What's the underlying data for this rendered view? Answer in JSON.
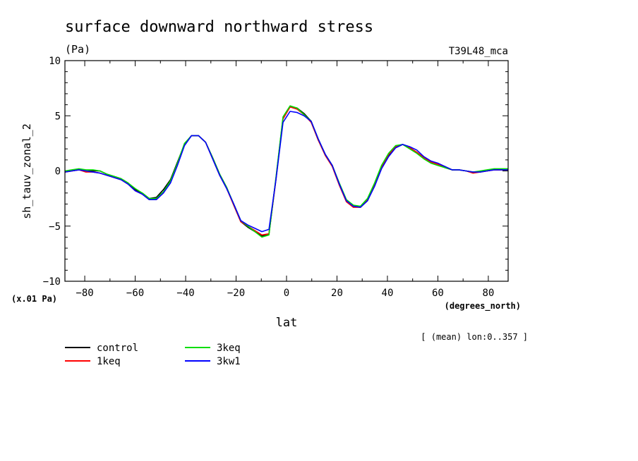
{
  "chart_data": {
    "type": "line",
    "title": "surface downward northward stress",
    "units": "(Pa)",
    "tag": "T39L48_mca",
    "ylabel": "sh_tauv_zonal_2",
    "xlabel": "lat",
    "xunits": "(degrees_north)",
    "yscale_note": "(x.01 Pa)",
    "footnote": "[ (mean) lon:0..357 ]",
    "xlim": [
      -87.86,
      87.86
    ],
    "ylim": [
      -10,
      10
    ],
    "x_ticks": [
      -80,
      -60,
      -40,
      -20,
      0,
      20,
      40,
      60,
      80
    ],
    "y_ticks": [
      -10,
      -5,
      0,
      5,
      10
    ],
    "grid": false,
    "legend_position": "bottom-left",
    "x": [
      -87.86,
      -85.1,
      -82.31,
      -79.53,
      -76.74,
      -73.95,
      -71.16,
      -68.37,
      -65.58,
      -62.79,
      -60.0,
      -57.21,
      -54.42,
      -51.63,
      -48.84,
      -46.04,
      -43.25,
      -40.46,
      -37.67,
      -34.88,
      -32.09,
      -29.3,
      -26.51,
      -23.72,
      -20.93,
      -18.14,
      -15.35,
      -12.56,
      -9.77,
      -6.98,
      -4.19,
      -1.4,
      1.4,
      4.19,
      6.98,
      9.77,
      12.56,
      15.35,
      18.14,
      20.93,
      23.72,
      26.51,
      29.3,
      32.09,
      34.88,
      37.67,
      40.46,
      43.25,
      46.04,
      48.84,
      51.63,
      54.42,
      57.21,
      60.0,
      62.79,
      65.58,
      68.37,
      71.16,
      73.95,
      76.74,
      79.53,
      82.31,
      85.1,
      87.86
    ],
    "series": [
      {
        "name": "control",
        "color": "#000000",
        "values": [
          -0.1,
          0.0,
          0.1,
          0.0,
          0.0,
          0.0,
          -0.3,
          -0.5,
          -0.7,
          -1.1,
          -1.7,
          -2.0,
          -2.5,
          -2.4,
          -1.7,
          -0.8,
          0.8,
          2.4,
          3.2,
          3.2,
          2.6,
          1.2,
          -0.3,
          -1.5,
          -3.1,
          -4.6,
          -5.1,
          -5.5,
          -5.9,
          -5.7,
          -0.7,
          4.8,
          5.8,
          5.7,
          5.2,
          4.5,
          2.8,
          1.5,
          0.5,
          -1.2,
          -2.7,
          -3.2,
          -3.3,
          -2.7,
          -1.3,
          0.3,
          1.4,
          2.1,
          2.4,
          2.1,
          1.7,
          1.2,
          0.8,
          0.6,
          0.4,
          0.1,
          0.1,
          0.0,
          -0.1,
          -0.1,
          0.0,
          0.1,
          0.1,
          0.1
        ]
      },
      {
        "name": "1keq",
        "color": "#ff0000",
        "values": [
          -0.1,
          0.0,
          0.1,
          -0.1,
          -0.1,
          -0.2,
          -0.4,
          -0.6,
          -0.8,
          -1.2,
          -1.8,
          -2.1,
          -2.6,
          -2.6,
          -2.0,
          -1.0,
          0.6,
          2.4,
          3.2,
          3.2,
          2.6,
          1.1,
          -0.4,
          -1.6,
          -3.1,
          -4.6,
          -5.0,
          -5.4,
          -5.8,
          -5.7,
          -0.8,
          4.7,
          5.8,
          5.6,
          5.1,
          4.4,
          2.8,
          1.4,
          0.4,
          -1.3,
          -2.8,
          -3.3,
          -3.3,
          -2.6,
          -1.2,
          0.4,
          1.5,
          2.2,
          2.4,
          2.1,
          1.7,
          1.2,
          0.8,
          0.6,
          0.3,
          0.1,
          0.1,
          0.0,
          -0.2,
          -0.1,
          0.0,
          0.1,
          0.1,
          0.1
        ]
      },
      {
        "name": "3keq",
        "color": "#00dd00",
        "values": [
          0.0,
          0.1,
          0.2,
          0.1,
          0.1,
          0.0,
          -0.3,
          -0.5,
          -0.7,
          -1.1,
          -1.6,
          -2.0,
          -2.5,
          -2.5,
          -1.9,
          -0.9,
          0.7,
          2.5,
          3.2,
          3.2,
          2.6,
          1.2,
          -0.3,
          -1.5,
          -3.0,
          -4.5,
          -5.0,
          -5.5,
          -6.0,
          -5.8,
          -0.6,
          4.9,
          5.9,
          5.7,
          5.1,
          4.5,
          2.9,
          1.5,
          0.5,
          -1.1,
          -2.6,
          -3.1,
          -3.2,
          -2.5,
          -1.1,
          0.5,
          1.6,
          2.3,
          2.4,
          2.0,
          1.6,
          1.1,
          0.7,
          0.5,
          0.3,
          0.1,
          0.1,
          0.0,
          -0.1,
          0.0,
          0.1,
          0.2,
          0.2,
          0.2
        ]
      },
      {
        "name": "3kw1",
        "color": "#0000ff",
        "values": [
          -0.1,
          0.0,
          0.1,
          0.0,
          -0.1,
          -0.2,
          -0.4,
          -0.6,
          -0.8,
          -1.2,
          -1.8,
          -2.1,
          -2.6,
          -2.6,
          -2.0,
          -1.1,
          0.5,
          2.3,
          3.2,
          3.2,
          2.6,
          1.1,
          -0.4,
          -1.6,
          -3.0,
          -4.5,
          -4.9,
          -5.2,
          -5.5,
          -5.3,
          -0.8,
          4.4,
          5.4,
          5.3,
          5.0,
          4.5,
          2.9,
          1.5,
          0.5,
          -1.2,
          -2.7,
          -3.2,
          -3.3,
          -2.7,
          -1.4,
          0.2,
          1.3,
          2.1,
          2.4,
          2.2,
          1.9,
          1.3,
          0.9,
          0.7,
          0.4,
          0.1,
          0.1,
          0.0,
          -0.1,
          -0.1,
          0.0,
          0.1,
          0.1,
          0.1
        ]
      }
    ]
  }
}
